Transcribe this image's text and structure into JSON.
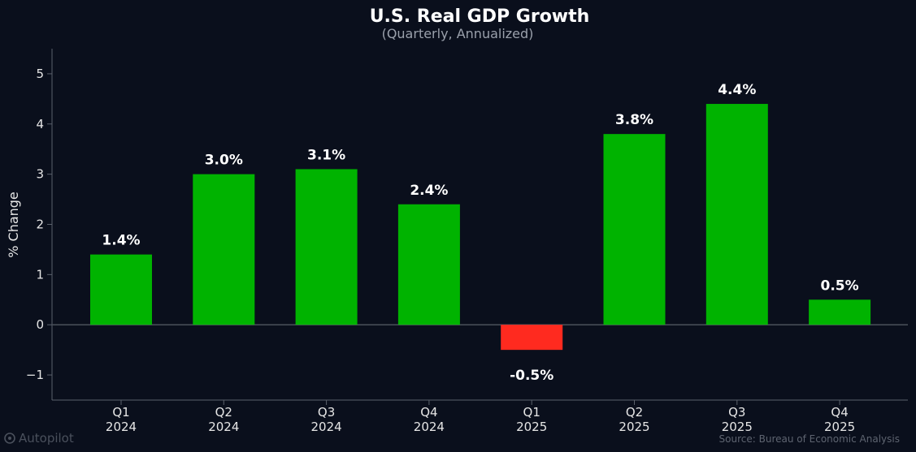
{
  "chart_data": {
    "type": "bar",
    "title": "U.S. Real GDP Growth",
    "subtitle": "(Quarterly, Annualized)",
    "xlabel": "",
    "ylabel": "% Change",
    "categories": [
      "Q1\n2024",
      "Q2\n2024",
      "Q3\n2024",
      "Q4\n2024",
      "Q1\n2025",
      "Q2\n2025",
      "Q3\n2025",
      "Q4\n2025"
    ],
    "values": [
      1.4,
      3.0,
      3.1,
      2.4,
      -0.5,
      3.8,
      4.4,
      0.5
    ],
    "data_labels": [
      "1.4%",
      "3.0%",
      "3.1%",
      "2.4%",
      "-0.5%",
      "3.8%",
      "4.4%",
      "0.5%"
    ],
    "ylim": [
      -1.5,
      5.5
    ],
    "yticks": [
      -1,
      0,
      1,
      2,
      3,
      4,
      5
    ],
    "ytick_labels": [
      "−1",
      "0",
      "1",
      "2",
      "3",
      "4",
      "5"
    ],
    "grid": false,
    "legend": "none",
    "colors": {
      "positive": "#00b300",
      "negative": "#ff2a1f",
      "background": "#0a0f1c",
      "axis": "#5a606b",
      "zero_line": "#4a505a"
    }
  },
  "watermark": {
    "icon": "autopilot-logo-icon",
    "text": "Autopilot"
  },
  "source": "Source: Bureau of Economic Analysis"
}
